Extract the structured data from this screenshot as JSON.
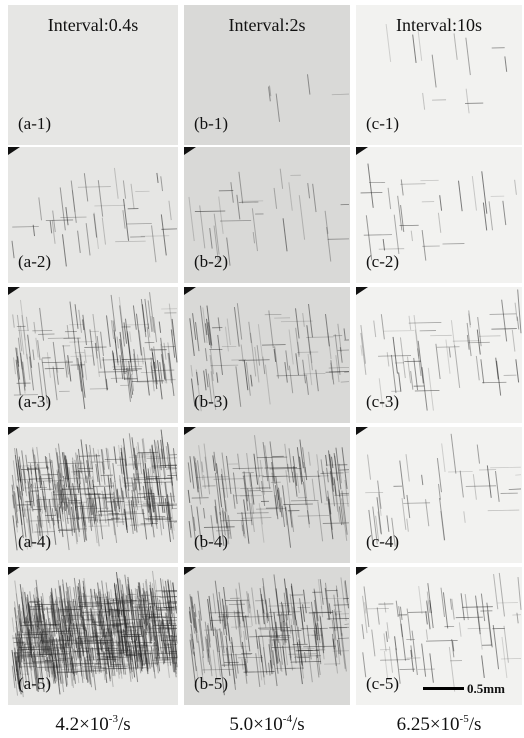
{
  "columns": [
    {
      "header": "Interval:0.4s",
      "panels": [
        "(a-1)",
        "(a-2)",
        "(a-3)",
        "(a-4)",
        "(a-5)"
      ],
      "rate": {
        "base": "4.2×10",
        "exponent": "-3",
        "unit": "/s"
      }
    },
    {
      "header": "Interval:2s",
      "panels": [
        "(b-1)",
        "(b-2)",
        "(b-3)",
        "(b-4)",
        "(b-5)"
      ],
      "rate": {
        "base": "5.0×10",
        "exponent": "-4",
        "unit": "/s"
      }
    },
    {
      "header": "Interval:10s",
      "panels": [
        "(c-1)",
        "(c-2)",
        "(c-3)",
        "(c-4)",
        "(c-5)"
      ],
      "rate": {
        "base": "6.25×10",
        "exponent": "-5",
        "unit": "/s"
      }
    }
  ],
  "scale_bar": "0.5mm"
}
